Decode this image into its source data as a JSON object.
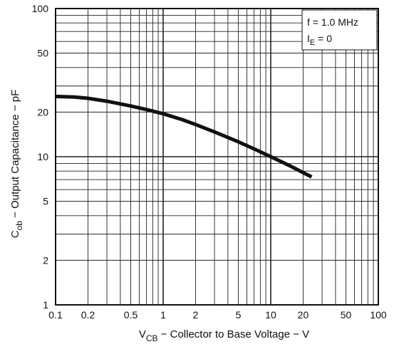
{
  "chart_data": {
    "type": "line",
    "title": "",
    "xscale": "log",
    "yscale": "log",
    "xlim": [
      0.1,
      100
    ],
    "ylim": [
      1,
      100
    ],
    "grid": true,
    "xlabel": {
      "main": "V",
      "sub": "CB",
      "rest": " − Collector to Base Voltage − V"
    },
    "ylabel": {
      "main": "C",
      "sub": "ob",
      "rest": " − Output Capacitance − pF"
    },
    "x_ticks": [
      {
        "value": 0.1,
        "label": "0.1"
      },
      {
        "value": 0.2,
        "label": "0.2"
      },
      {
        "value": 0.5,
        "label": "0.5"
      },
      {
        "value": 1,
        "label": "1"
      },
      {
        "value": 2,
        "label": "2"
      },
      {
        "value": 5,
        "label": "5"
      },
      {
        "value": 10,
        "label": "10"
      },
      {
        "value": 20,
        "label": "20"
      },
      {
        "value": 50,
        "label": "50"
      },
      {
        "value": 100,
        "label": "100"
      }
    ],
    "y_ticks": [
      {
        "value": 1,
        "label": "1"
      },
      {
        "value": 2,
        "label": "2"
      },
      {
        "value": 5,
        "label": "5"
      },
      {
        "value": 10,
        "label": "10"
      },
      {
        "value": 20,
        "label": "20"
      },
      {
        "value": 50,
        "label": "50"
      },
      {
        "value": 100,
        "label": "100"
      }
    ],
    "conditions": {
      "line1": "f = 1.0 MHz",
      "line2_main": "I",
      "line2_sub": "E",
      "line2_rest": " = 0"
    },
    "series": [
      {
        "points": [
          {
            "x": 0.1,
            "y": 25.5
          },
          {
            "x": 0.15,
            "y": 25.3
          },
          {
            "x": 0.2,
            "y": 24.8
          },
          {
            "x": 0.3,
            "y": 23.7
          },
          {
            "x": 0.5,
            "y": 22.0
          },
          {
            "x": 0.7,
            "y": 20.8
          },
          {
            "x": 1.0,
            "y": 19.5
          },
          {
            "x": 1.5,
            "y": 17.8
          },
          {
            "x": 2.0,
            "y": 16.5
          },
          {
            "x": 3.0,
            "y": 14.7
          },
          {
            "x": 5.0,
            "y": 12.6
          },
          {
            "x": 7.0,
            "y": 11.3
          },
          {
            "x": 10.0,
            "y": 10.0
          },
          {
            "x": 15.0,
            "y": 8.7
          },
          {
            "x": 20.0,
            "y": 7.8
          },
          {
            "x": 24.0,
            "y": 7.3
          }
        ]
      }
    ]
  }
}
